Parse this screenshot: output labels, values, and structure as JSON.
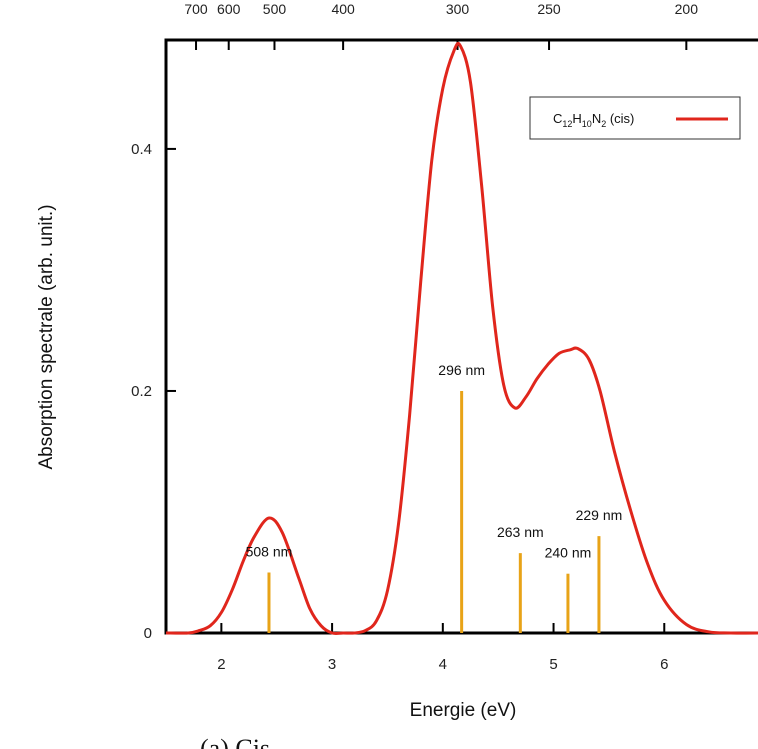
{
  "colors": {
    "curve": "#e0261c",
    "stick": "#e8a317",
    "frame": "#000000"
  },
  "caption": "(a) Cis",
  "chart_data": {
    "type": "line",
    "xlabel": "Energie (eV)",
    "ylabel": "Absorption spectrale (arb. unit.)",
    "xlim": [
      1.5,
      7.0
    ],
    "ylim": [
      0,
      0.49
    ],
    "x_ticks": [
      2,
      3,
      4,
      5,
      6
    ],
    "y_ticks": [
      0,
      0.2,
      0.4
    ],
    "top_axis": {
      "unit": "nm",
      "ticks": [
        700,
        600,
        500,
        400,
        300,
        250,
        200
      ]
    },
    "legend": {
      "position": "top-right",
      "formula_prefix": "C",
      "sub1": "12",
      "mid1": "H",
      "sub2": "10",
      "mid2": "N",
      "sub3": "2",
      "suffix": " (cis)"
    },
    "grid": false,
    "series": [
      {
        "name": "C12H10N2 (cis)",
        "x": [
          1.5,
          1.7,
          1.8,
          1.9,
          2.0,
          2.1,
          2.2,
          2.3,
          2.43,
          2.55,
          2.7,
          2.8,
          2.9,
          3.0,
          3.1,
          3.2,
          3.3,
          3.4,
          3.5,
          3.6,
          3.7,
          3.8,
          3.9,
          4.0,
          4.1,
          4.16,
          4.25,
          4.35,
          4.45,
          4.55,
          4.65,
          4.75,
          4.85,
          4.95,
          5.05,
          5.15,
          5.22,
          5.32,
          5.42,
          5.55,
          5.7,
          5.85,
          6.0,
          6.2,
          6.4,
          6.6,
          7.0
        ],
        "y": [
          0.0,
          0.0,
          0.002,
          0.006,
          0.017,
          0.036,
          0.06,
          0.08,
          0.095,
          0.083,
          0.045,
          0.02,
          0.006,
          0.0,
          0.0,
          0.0,
          0.002,
          0.01,
          0.035,
          0.09,
          0.18,
          0.29,
          0.39,
          0.45,
          0.481,
          0.485,
          0.455,
          0.37,
          0.27,
          0.205,
          0.186,
          0.195,
          0.21,
          0.222,
          0.231,
          0.234,
          0.235,
          0.226,
          0.2,
          0.15,
          0.1,
          0.057,
          0.027,
          0.007,
          0.001,
          0.0,
          0.0
        ]
      }
    ],
    "transitions": [
      {
        "energy": 2.43,
        "intensity": 0.05,
        "label": "508 nm"
      },
      {
        "energy": 4.17,
        "intensity": 0.2,
        "label": "296 nm"
      },
      {
        "energy": 4.7,
        "intensity": 0.066,
        "label": "263 nm"
      },
      {
        "energy": 5.13,
        "intensity": 0.049,
        "label": "240 nm"
      },
      {
        "energy": 5.41,
        "intensity": 0.08,
        "label": "229 nm"
      }
    ]
  }
}
